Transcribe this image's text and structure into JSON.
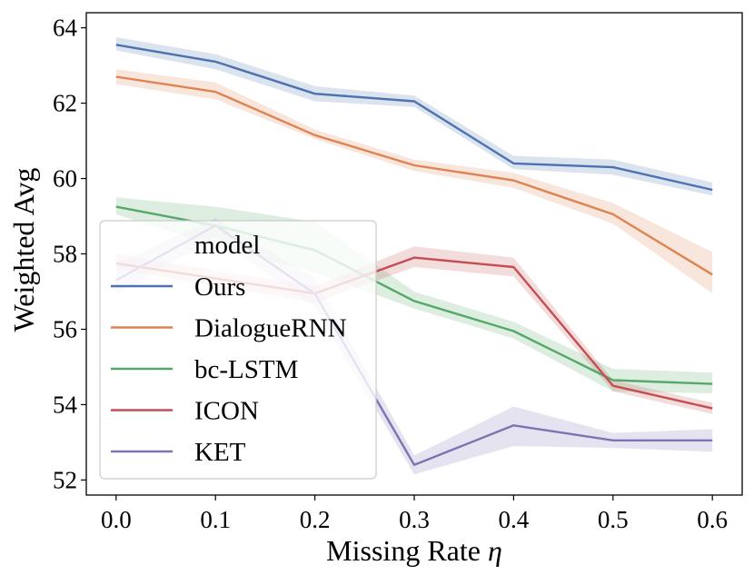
{
  "chart_data": {
    "type": "line",
    "title": "",
    "xlabel": "Missing Rate",
    "xlabel_symbol": "η",
    "ylabel": "Weighted Avg",
    "x": [
      0.0,
      0.1,
      0.2,
      0.3,
      0.4,
      0.5,
      0.6
    ],
    "x_tick_labels": [
      "0.0",
      "0.1",
      "0.2",
      "0.3",
      "0.4",
      "0.5",
      "0.6"
    ],
    "y_ticks": [
      52,
      54,
      56,
      58,
      60,
      62,
      64
    ],
    "y_tick_labels": [
      "52",
      "54",
      "56",
      "58",
      "60",
      "62",
      "64"
    ],
    "xlim": [
      -0.03,
      0.63
    ],
    "ylim": [
      51.6,
      64.4
    ],
    "grid": false,
    "legend": {
      "title": "model",
      "placement": "lower-left"
    },
    "series": [
      {
        "name": "Ours",
        "color": "#4C72B0",
        "values": [
          63.55,
          63.1,
          62.25,
          62.05,
          60.4,
          60.3,
          59.7
        ],
        "lower": [
          63.4,
          62.9,
          62.05,
          61.9,
          60.25,
          60.1,
          59.55
        ],
        "upper": [
          63.75,
          63.3,
          62.45,
          62.2,
          60.6,
          60.5,
          59.9
        ]
      },
      {
        "name": "DialogueRNN",
        "color": "#DD8452",
        "values": [
          62.7,
          62.3,
          61.15,
          60.35,
          59.95,
          59.05,
          57.45
        ],
        "lower": [
          62.5,
          62.1,
          61.05,
          60.2,
          59.75,
          58.8,
          56.95
        ],
        "upper": [
          62.9,
          62.55,
          61.3,
          60.5,
          60.15,
          59.35,
          58.05
        ]
      },
      {
        "name": "bc-LSTM",
        "color": "#55A868",
        "values": [
          59.25,
          58.75,
          58.1,
          56.75,
          55.95,
          54.65,
          54.55
        ],
        "lower": [
          59.05,
          58.2,
          57.5,
          56.55,
          55.75,
          54.35,
          54.3
        ],
        "upper": [
          59.5,
          59.25,
          58.85,
          57.0,
          56.2,
          54.95,
          54.85
        ]
      },
      {
        "name": "ICON",
        "color": "#C44E52",
        "values": [
          57.75,
          57.35,
          56.95,
          57.9,
          57.65,
          54.5,
          53.9
        ],
        "lower": [
          57.6,
          57.15,
          56.7,
          57.65,
          57.4,
          54.35,
          53.75
        ],
        "upper": [
          58.0,
          57.55,
          57.15,
          58.2,
          57.9,
          54.65,
          54.05
        ]
      },
      {
        "name": "KET",
        "color": "#8172B3",
        "values": [
          57.3,
          58.75,
          56.95,
          52.4,
          53.45,
          53.05,
          53.05
        ],
        "lower": [
          56.9,
          58.45,
          56.6,
          52.15,
          52.9,
          52.85,
          52.75
        ],
        "upper": [
          57.75,
          58.95,
          57.35,
          52.65,
          53.95,
          53.25,
          53.35
        ]
      }
    ]
  }
}
